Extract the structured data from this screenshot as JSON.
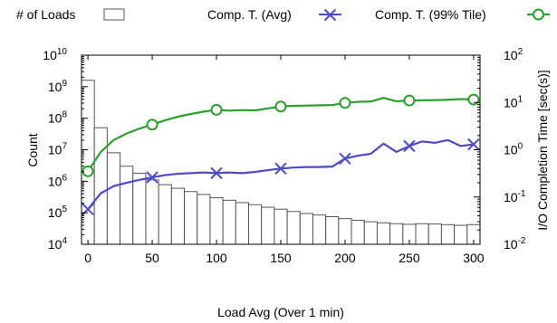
{
  "chart_data": {
    "type": "bar",
    "xlabel": "Load Avg (Over 1 min)",
    "ylabel": "Count",
    "y2label": "I/O Completion Time [sec(s)]",
    "x_ticks": [
      "0",
      "50",
      "100",
      "150",
      "200",
      "250",
      "300"
    ],
    "x_tick_values": [
      0,
      50,
      100,
      150,
      200,
      250,
      300
    ],
    "xlim": [
      -5,
      305
    ],
    "y_scale": "log",
    "ylim": [
      10000,
      10000000000
    ],
    "y_tick_values": [
      10000,
      100000,
      1000000,
      10000000,
      100000000,
      1000000000,
      10000000000
    ],
    "y_tick_exponents": [
      "4",
      "5",
      "6",
      "7",
      "8",
      "9",
      "10"
    ],
    "y2_scale": "log",
    "y2lim": [
      0.01,
      100
    ],
    "y2_tick_values": [
      0.01,
      0.1,
      1,
      10,
      100
    ],
    "y2_tick_exponents": [
      "-2",
      "-1",
      "0",
      "1",
      "2"
    ],
    "tick_base": "10",
    "legend_position": "top",
    "series": [
      {
        "name": "# of Loads",
        "kind": "bar",
        "axis": "left",
        "color": "#555555",
        "x": [
          0,
          10,
          20,
          30,
          40,
          50,
          60,
          70,
          80,
          90,
          100,
          110,
          120,
          130,
          140,
          150,
          160,
          170,
          180,
          190,
          200,
          210,
          220,
          230,
          240,
          250,
          260,
          270,
          280,
          290,
          300
        ],
        "values": [
          1600000000,
          50000000,
          8000000,
          3000000,
          1800000,
          1100000,
          780000,
          600000,
          470000,
          380000,
          300000,
          250000,
          210000,
          180000,
          150000,
          130000,
          110000,
          95000,
          85000,
          75000,
          65000,
          58000,
          52000,
          48000,
          45000,
          43000,
          45000,
          44000,
          42000,
          40000,
          42000
        ]
      },
      {
        "name": "Comp. T. (Avg)",
        "kind": "line",
        "axis": "right",
        "color": "#4b4bc8",
        "marker": "x",
        "x": [
          0,
          10,
          20,
          30,
          40,
          50,
          60,
          70,
          80,
          90,
          100,
          110,
          120,
          130,
          140,
          150,
          160,
          170,
          180,
          190,
          200,
          210,
          220,
          230,
          240,
          250,
          260,
          270,
          280,
          290,
          300
        ],
        "values": [
          0.055,
          0.12,
          0.17,
          0.2,
          0.23,
          0.26,
          0.29,
          0.31,
          0.32,
          0.33,
          0.32,
          0.33,
          0.32,
          0.34,
          0.37,
          0.4,
          0.42,
          0.43,
          0.43,
          0.44,
          0.65,
          0.75,
          0.82,
          1.35,
          0.9,
          1.2,
          1.5,
          1.4,
          1.6,
          1.2,
          1.3
        ],
        "marker_x": [
          0,
          50,
          100,
          150,
          200,
          250,
          300
        ]
      },
      {
        "name": "Comp. T. (99% Tile)",
        "kind": "line",
        "axis": "right",
        "color": "#2b9e2b",
        "marker": "circle",
        "x": [
          0,
          10,
          20,
          30,
          40,
          50,
          60,
          70,
          80,
          90,
          100,
          110,
          120,
          130,
          140,
          150,
          160,
          170,
          180,
          190,
          200,
          210,
          220,
          230,
          240,
          250,
          260,
          270,
          280,
          290,
          300
        ],
        "values": [
          0.35,
          0.9,
          1.6,
          2.2,
          2.8,
          3.4,
          4.2,
          5.0,
          5.7,
          6.4,
          7.0,
          6.7,
          6.9,
          6.8,
          7.5,
          8.2,
          8.5,
          8.6,
          8.7,
          8.8,
          9.8,
          10.3,
          10.5,
          12.5,
          10.6,
          11.0,
          11.1,
          11.2,
          11.4,
          11.8,
          11.5
        ],
        "marker_x": [
          0,
          50,
          100,
          150,
          200,
          250,
          300
        ]
      }
    ]
  }
}
